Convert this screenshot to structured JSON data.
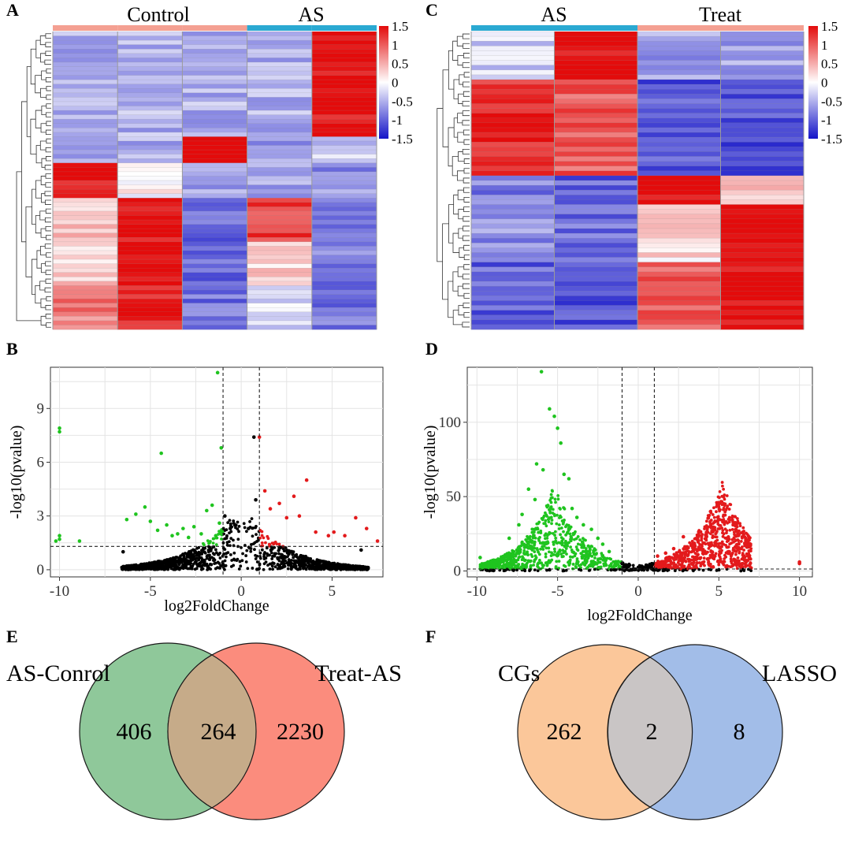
{
  "panels": [
    {
      "id": "A",
      "label": "A",
      "chart_data": {
        "type": "heatmap",
        "title": "",
        "groups": [
          {
            "name": "Control",
            "color": "#f4a092"
          },
          {
            "name": "AS",
            "color": "#2aa9d2"
          }
        ],
        "column_groups": [
          "Control",
          "Control",
          "Control",
          "AS",
          "AS"
        ],
        "row_blocks": [
          {
            "rows": 24,
            "values": [
              -0.5,
              -0.5,
              -0.5,
              -0.5,
              1.5
            ]
          },
          {
            "rows": 6,
            "values": [
              -0.5,
              -0.5,
              1.5,
              -0.6,
              -0.3
            ]
          },
          {
            "rows": 8,
            "values": [
              1.5,
              0.0,
              -0.6,
              -0.6,
              -0.7
            ]
          },
          {
            "rows": 10,
            "values": [
              0.4,
              1.5,
              -1.0,
              1.2,
              -0.9
            ]
          },
          {
            "rows": 10,
            "values": [
              0.3,
              1.5,
              -0.9,
              0.3,
              -0.8
            ]
          },
          {
            "rows": 10,
            "values": [
              0.8,
              1.4,
              -0.9,
              -0.2,
              -0.9
            ]
          }
        ],
        "legend": {
          "ticks": [
            "1.5",
            "1",
            "0.5",
            "0",
            "-0.5",
            "-1",
            "-1.5"
          ],
          "range": [
            -1.5,
            1.5
          ]
        }
      }
    },
    {
      "id": "C",
      "label": "C",
      "chart_data": {
        "type": "heatmap",
        "title": "",
        "groups": [
          {
            "name": "AS",
            "color": "#2aa9d2"
          },
          {
            "name": "Treat",
            "color": "#f4a092"
          }
        ],
        "column_groups": [
          "AS",
          "AS",
          "Treat",
          "Treat"
        ],
        "row_blocks": [
          {
            "rows": 10,
            "values": [
              -0.3,
              1.5,
              -0.6,
              -0.6
            ]
          },
          {
            "rows": 20,
            "values": [
              1.3,
              1.0,
              -1.1,
              -1.1
            ]
          },
          {
            "rows": 6,
            "values": [
              -0.8,
              -1.0,
              1.5,
              0.3
            ]
          },
          {
            "rows": 12,
            "values": [
              -0.7,
              -0.9,
              0.2,
              1.5
            ]
          },
          {
            "rows": 14,
            "values": [
              -1.0,
              -1.1,
              1.0,
              1.5
            ]
          }
        ],
        "legend": {
          "ticks": [
            "1.5",
            "1",
            "0.5",
            "0",
            "-0.5",
            "-1",
            "-1.5"
          ],
          "range": [
            -1.5,
            1.5
          ]
        }
      }
    },
    {
      "id": "B",
      "label": "B",
      "chart_data": {
        "type": "scatter",
        "xlabel": "log2FoldChange",
        "ylabel": "-log10(pvalue)",
        "xlim": [
          -10.5,
          7.8
        ],
        "ylim": [
          -0.4,
          11.3
        ],
        "xticks": [
          -10,
          -5,
          0,
          5
        ],
        "yticks": [
          0,
          3,
          6,
          9
        ],
        "vlines": [
          -1,
          1
        ],
        "hline": 1.3,
        "grid": true,
        "series": [
          {
            "name": "down",
            "color": "#1fc41f",
            "points": [
              [
                -10,
                7.9
              ],
              [
                -10,
                7.7
              ],
              [
                -10,
                1.9
              ],
              [
                -10,
                1.7
              ],
              [
                -10.2,
                1.6
              ],
              [
                -8.9,
                1.6
              ],
              [
                -6.3,
                2.8
              ],
              [
                -5.8,
                3.1
              ],
              [
                -5.3,
                3.5
              ],
              [
                -5.0,
                2.7
              ],
              [
                -4.6,
                2.2
              ],
              [
                -4.4,
                6.5
              ],
              [
                -4.1,
                2.5
              ],
              [
                -3.8,
                1.9
              ],
              [
                -3.5,
                2.0
              ],
              [
                -3.2,
                2.3
              ],
              [
                -2.9,
                1.8
              ],
              [
                -2.6,
                2.4
              ],
              [
                -2.2,
                2.0
              ],
              [
                -1.9,
                3.3
              ],
              [
                -1.6,
                3.6
              ],
              [
                -1.4,
                1.9
              ],
              [
                -1.3,
                11.0
              ],
              [
                -1.1,
                6.8
              ],
              [
                -1.2,
                2.6
              ]
            ]
          },
          {
            "name": "up",
            "color": "#e31a1c",
            "points": [
              [
                1.0,
                7.4
              ],
              [
                1.3,
                4.4
              ],
              [
                1.6,
                3.4
              ],
              [
                2.1,
                3.7
              ],
              [
                2.5,
                2.9
              ],
              [
                2.9,
                4.1
              ],
              [
                3.2,
                3.0
              ],
              [
                3.6,
                5.0
              ],
              [
                4.1,
                2.1
              ],
              [
                4.8,
                1.9
              ],
              [
                5.1,
                2.1
              ],
              [
                5.7,
                1.9
              ],
              [
                6.3,
                2.9
              ],
              [
                6.9,
                2.3
              ],
              [
                7.5,
                1.6
              ]
            ]
          },
          {
            "name": "ns",
            "color": "#000000",
            "points": [
              [
                -0.6,
                2.3
              ],
              [
                -0.9,
                3.0
              ],
              [
                0.4,
                2.3
              ],
              [
                0.8,
                3.9
              ],
              [
                0.7,
                7.4
              ],
              [
                -6.5,
                1.0
              ],
              [
                6.6,
                1.1
              ]
            ]
          }
        ]
      }
    },
    {
      "id": "D",
      "label": "D",
      "chart_data": {
        "type": "scatter",
        "xlabel": "log2FoldChange",
        "ylabel": "-log10(pvalue)",
        "xlim": [
          -10.6,
          10.8
        ],
        "ylim": [
          -4,
          137
        ],
        "xticks": [
          -10,
          -5,
          0,
          5,
          10
        ],
        "yticks": [
          0,
          50,
          100
        ],
        "vlines": [
          -1,
          1
        ],
        "hline": 1.3,
        "grid": true,
        "series": [
          {
            "name": "down",
            "color": "#1fc41f",
            "points": [
              [
                -6.0,
                134
              ],
              [
                -5.5,
                109
              ],
              [
                -5.2,
                104
              ],
              [
                -5.0,
                96
              ],
              [
                -4.8,
                86
              ],
              [
                -6.3,
                72
              ],
              [
                -5.9,
                68
              ],
              [
                -4.6,
                65
              ],
              [
                -4.3,
                62
              ],
              [
                -6.8,
                55
              ],
              [
                -6.4,
                48
              ],
              [
                -5.6,
                44
              ],
              [
                -4.1,
                42
              ],
              [
                -3.8,
                36
              ],
              [
                -7.2,
                38
              ],
              [
                -7.4,
                31
              ],
              [
                -3.4,
                31
              ],
              [
                -2.9,
                28
              ],
              [
                -8.0,
                22
              ],
              [
                -2.5,
                22
              ],
              [
                -2.2,
                18
              ],
              [
                -1.8,
                13
              ],
              [
                -9.8,
                9
              ],
              [
                -9.1,
                6
              ],
              [
                -8.6,
                5
              ]
            ]
          },
          {
            "name": "up",
            "color": "#e31a1c",
            "points": [
              [
                1.2,
                10
              ],
              [
                1.7,
                12
              ],
              [
                2.2,
                15
              ],
              [
                2.8,
                23
              ],
              [
                3.3,
                18
              ],
              [
                3.7,
                11
              ],
              [
                4.3,
                8
              ],
              [
                5.0,
                6
              ],
              [
                5.9,
                4
              ],
              [
                7.0,
                2
              ],
              [
                10,
                6
              ],
              [
                10,
                5
              ]
            ]
          },
          {
            "name": "ns",
            "color": "#000000",
            "points": [
              [
                -1.0,
                5
              ],
              [
                -0.6,
                3
              ],
              [
                0.3,
                2
              ],
              [
                0.7,
                3
              ],
              [
                -5.5,
                0.8
              ],
              [
                5.0,
                0.8
              ]
            ]
          }
        ]
      }
    }
  ],
  "venns": [
    {
      "id": "E",
      "label": "E",
      "left": {
        "name": "AS-Conrol",
        "only": "406",
        "color": "#8fc89a"
      },
      "right": {
        "name": "Treat-AS",
        "only": "2230",
        "color": "#fb8c7d"
      },
      "overlap": {
        "value": "264",
        "color": "#c6ab89"
      }
    },
    {
      "id": "F",
      "label": "F",
      "left": {
        "name": "CGs",
        "only": "262",
        "color": "#fbc79a"
      },
      "right": {
        "name": "LASSO",
        "only": "8",
        "color": "#a2bde8"
      },
      "overlap": {
        "value": "2",
        "color": "#c9c5c5"
      }
    }
  ]
}
